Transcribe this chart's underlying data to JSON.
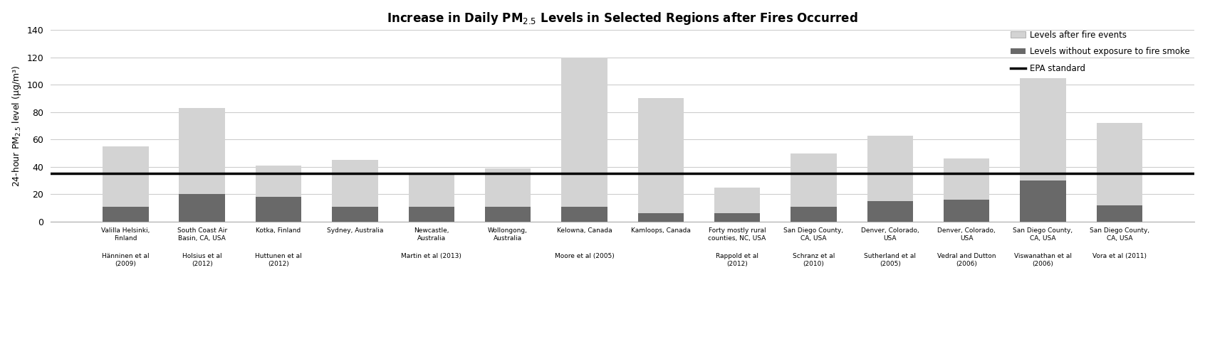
{
  "title": "Increase in Daily PM$_{2.5}$ Levels in Selected Regions after Fires Occurred",
  "ylabel": "24-hour PM$_{2.5}$ level (μg/m³)",
  "epa_standard": 35,
  "ylim": [
    0,
    140
  ],
  "yticks": [
    0,
    20,
    40,
    60,
    80,
    100,
    120,
    140
  ],
  "bar_color_fire": "#d3d3d3",
  "bar_color_no_fire": "#696969",
  "epa_line_color": "#000000",
  "background_color": "#ffffff",
  "categories": [
    "Valilla Helsinki,\nFinland",
    "South Coast Air\nBasin, CA, USA",
    "Kotka, Finland",
    "Sydney, Australia",
    "Newcastle,\nAustralia",
    "Wollongong,\nAustralia",
    "Kelowna, Canada",
    "Kamloops, Canada",
    "Forty mostly rural\ncounties, NC, USA",
    "San Diego County,\nCA, USA",
    "Denver, Colorado,\nUSA",
    "Denver, Colorado,\nUSA",
    "San Diego County,\nCA, USA",
    "San Diego County,\nCA, USA"
  ],
  "references": [
    "Hänninen et al\n(2009)",
    "Holsius et al\n(2012)",
    "Huttunen et al\n(2012)",
    "",
    "Martin et al (2013)",
    "",
    "Moore et al (2005)",
    "",
    "Rappold et al\n(2012)",
    "Schranz et al\n(2010)",
    "Sutherland et al\n(2005)",
    "Vedral and Dutton\n(2006)",
    "Viswanathan et al\n(2006)",
    "Vora et al (2011)"
  ],
  "fire_levels": [
    55,
    83,
    41,
    45,
    35,
    39,
    120,
    90,
    25,
    50,
    63,
    46,
    105,
    72
  ],
  "no_fire_levels": [
    11,
    20,
    18,
    11,
    11,
    11,
    11,
    6,
    6,
    11,
    15,
    16,
    30,
    12
  ]
}
